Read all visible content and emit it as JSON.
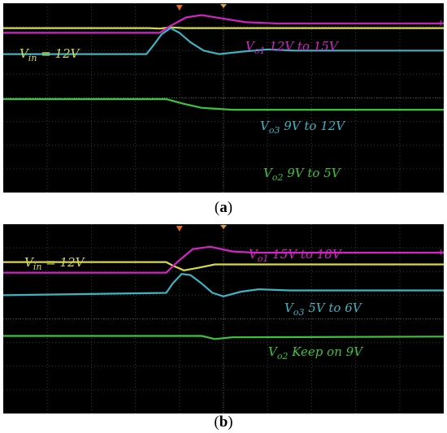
{
  "colors": {
    "background": "#000000",
    "grid": "#3c3c3c",
    "vin": "#d8d84a",
    "vo1": "#d424c8",
    "vo2": "#3cc43c",
    "vo3": "#3cb4c4",
    "trigger": "#e07020"
  },
  "chart_data": [
    {
      "type": "line",
      "panel_label": "a",
      "grid": true,
      "x_divisions": 10,
      "y_divisions": 8,
      "annotations": [
        {
          "series": "vin",
          "text": "V_in = 12V",
          "sym": "V",
          "sub": "in",
          "rest": " = 12V"
        },
        {
          "series": "vo1",
          "text": "V_o1 12V to 15V",
          "sym": "V",
          "sub": "o1",
          "rest": " 12V to 15V"
        },
        {
          "series": "vo3",
          "text": "V_o3 9V to 12V",
          "sym": "V",
          "sub": "o3",
          "rest": " 9V to 12V"
        },
        {
          "series": "vo2",
          "text": "V_o2 9V to 5V",
          "sym": "V",
          "sub": "o2",
          "rest": " 9V to 5V"
        }
      ],
      "series": [
        {
          "id": "vin",
          "color": "#d8d84a",
          "points": [
            [
              0,
              6.95
            ],
            [
              3.3,
              6.95
            ],
            [
              3.55,
              6.93
            ],
            [
              3.8,
              6.98
            ],
            [
              4.1,
              6.95
            ],
            [
              10,
              6.95
            ]
          ]
        },
        {
          "id": "vo1",
          "color": "#d424c8",
          "points": [
            [
              0,
              6.75
            ],
            [
              3.55,
              6.75
            ],
            [
              3.8,
              7.05
            ],
            [
              4.15,
              7.4
            ],
            [
              4.5,
              7.5
            ],
            [
              5.0,
              7.35
            ],
            [
              5.5,
              7.2
            ],
            [
              6.2,
              7.15
            ],
            [
              10,
              7.15
            ]
          ]
        },
        {
          "id": "vo3",
          "color": "#3cb4c4",
          "points": [
            [
              0,
              5.85
            ],
            [
              3.25,
              5.85
            ],
            [
              3.4,
              6.2
            ],
            [
              3.6,
              6.7
            ],
            [
              3.8,
              6.95
            ],
            [
              4.0,
              6.75
            ],
            [
              4.25,
              6.35
            ],
            [
              4.55,
              6.0
            ],
            [
              4.9,
              5.85
            ],
            [
              5.4,
              5.95
            ],
            [
              6.0,
              6.05
            ],
            [
              6.6,
              6.0
            ],
            [
              10,
              6.0
            ]
          ]
        },
        {
          "id": "vo2",
          "color": "#3cc43c",
          "points": [
            [
              0,
              3.95
            ],
            [
              3.7,
              3.95
            ],
            [
              4.1,
              3.75
            ],
            [
              4.5,
              3.58
            ],
            [
              5.2,
              3.5
            ],
            [
              10,
              3.5
            ]
          ]
        }
      ]
    },
    {
      "type": "line",
      "panel_label": "b",
      "grid": true,
      "x_divisions": 10,
      "y_divisions": 8,
      "annotations": [
        {
          "series": "vin",
          "text": "V_in = 12V",
          "sym": "V",
          "sub": "in",
          "rest": " = 12V"
        },
        {
          "series": "vo1",
          "text": "V_o1 15V to 18V",
          "sym": "V",
          "sub": "o1",
          "rest": " 15V to 18V"
        },
        {
          "series": "vo3",
          "text": "V_o3 5V to 6V",
          "sym": "V",
          "sub": "o3",
          "rest": " 5V to 6V"
        },
        {
          "series": "vo2",
          "text": "V_o2 Keep on 9V",
          "sym": "V",
          "sub": "o2",
          "rest": " Keep on 9V"
        }
      ],
      "series": [
        {
          "id": "vin",
          "color": "#d8d84a",
          "points": [
            [
              0,
              6.4
            ],
            [
              3.7,
              6.4
            ],
            [
              3.85,
              6.25
            ],
            [
              4.1,
              6.05
            ],
            [
              4.4,
              6.15
            ],
            [
              4.8,
              6.3
            ],
            [
              10,
              6.3
            ]
          ]
        },
        {
          "id": "vo1",
          "color": "#d424c8",
          "points": [
            [
              0,
              5.95
            ],
            [
              3.7,
              5.95
            ],
            [
              3.95,
              6.4
            ],
            [
              4.3,
              6.95
            ],
            [
              4.7,
              7.05
            ],
            [
              5.2,
              6.85
            ],
            [
              5.7,
              6.8
            ],
            [
              10,
              6.8
            ]
          ]
        },
        {
          "id": "vo3",
          "color": "#3cb4c4",
          "points": [
            [
              0,
              5.0
            ],
            [
              3.7,
              5.1
            ],
            [
              3.85,
              5.5
            ],
            [
              4.05,
              5.9
            ],
            [
              4.25,
              5.85
            ],
            [
              4.5,
              5.5
            ],
            [
              4.75,
              5.1
            ],
            [
              5.0,
              4.95
            ],
            [
              5.4,
              5.15
            ],
            [
              5.8,
              5.25
            ],
            [
              6.5,
              5.2
            ],
            [
              10,
              5.2
            ]
          ]
        },
        {
          "id": "vo2",
          "color": "#3cc43c",
          "points": [
            [
              0,
              3.28
            ],
            [
              4.5,
              3.28
            ],
            [
              4.8,
              3.15
            ],
            [
              5.2,
              3.22
            ],
            [
              10,
              3.25
            ]
          ]
        }
      ]
    }
  ]
}
